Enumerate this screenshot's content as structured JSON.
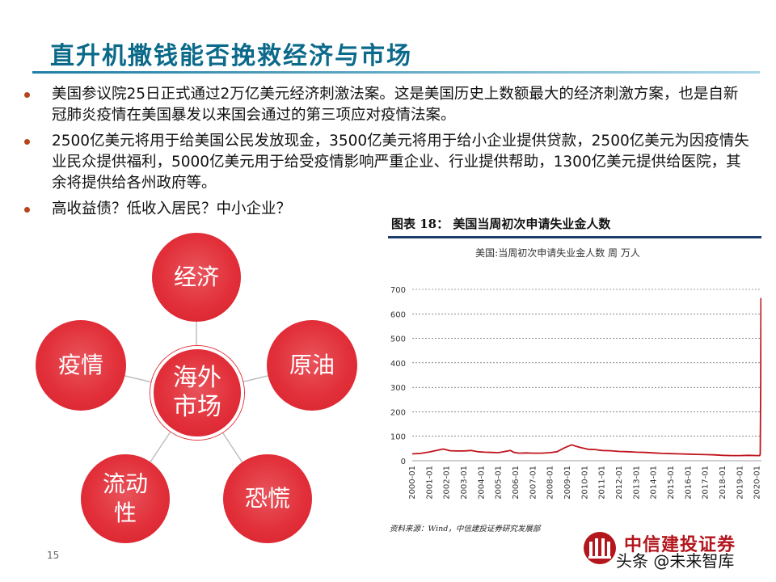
{
  "slide": {
    "title": "直升机撒钱能否挽救经济与市场",
    "page_number": "15"
  },
  "bullets": [
    "美国参议院25日正式通过2万亿美元经济刺激法案。这是美国历史上数额最大的经济刺激方案，也是自新冠肺炎疫情在美国暴发以来国会通过的第三项应对疫情法案。",
    "2500亿美元将用于给美国公民发放现金，3500亿美元将用于给小企业提供贷款，2500亿美元为因疫情失业民众提供福利，5000亿美元用于给受疫情影响严重企业、行业提供帮助，1300亿美元提供给医院，其余将提供给各州政府等。",
    "高收益债？低收入居民？中小企业？"
  ],
  "diagram": {
    "center": "海外\n市场",
    "nodes": [
      "经济",
      "原油",
      "恐慌",
      "流动\n性",
      "疫情"
    ],
    "color": "#e2303a"
  },
  "chart_data": {
    "type": "line",
    "title": "图表 18：  美国当周初次申请失业金人数",
    "subtitle": "美国:当周初次申请失业金人数  周  万人",
    "source": "资料来源：Wind，中信建投证券研究发展部",
    "ylim": [
      0,
      700
    ],
    "yticks": [
      "0",
      "100",
      "200",
      "300",
      "400",
      "500",
      "600",
      "700"
    ],
    "xticks": [
      "2000-01",
      "2001-01",
      "2002-01",
      "2003-01",
      "2004-01",
      "2005-01",
      "2006-01",
      "2007-01",
      "2008-01",
      "2009-01",
      "2010-01",
      "2011-01",
      "2012-01",
      "2013-01",
      "2014-01",
      "2015-01",
      "2016-01",
      "2017-01",
      "2018-01",
      "2019-01",
      "2020-01"
    ],
    "x_range": [
      2000.0,
      2020.25
    ],
    "series": [
      {
        "color": "#c0141c",
        "x": [
          2000.0,
          2000.5,
          2001.0,
          2001.4,
          2001.8,
          2002.2,
          2002.6,
          2003.0,
          2003.4,
          2003.8,
          2004.2,
          2004.6,
          2005.0,
          2005.7,
          2005.9,
          2006.2,
          2006.6,
          2007.0,
          2007.5,
          2008.0,
          2008.4,
          2008.8,
          2009.0,
          2009.25,
          2009.5,
          2009.8,
          2010.2,
          2010.6,
          2011.0,
          2011.5,
          2012.0,
          2012.5,
          2013.0,
          2013.5,
          2014.0,
          2014.5,
          2015.0,
          2015.5,
          2016.0,
          2016.5,
          2017.0,
          2017.5,
          2018.0,
          2018.5,
          2019.0,
          2019.5,
          2020.0,
          2020.15,
          2020.18,
          2020.21
        ],
        "y": [
          28,
          30,
          36,
          42,
          48,
          41,
          40,
          40,
          42,
          37,
          35,
          34,
          33,
          42,
          34,
          31,
          32,
          31,
          31,
          33,
          37,
          52,
          58,
          65,
          59,
          53,
          47,
          46,
          42,
          41,
          38,
          37,
          35,
          34,
          32,
          30,
          29,
          28,
          27,
          26,
          25,
          24,
          22,
          21,
          21,
          22,
          21,
          21,
          28,
          328
        ]
      },
      {
        "color": "#c0141c",
        "x": [
          2020.21,
          2020.22
        ],
        "y": [
          328,
          665
        ]
      }
    ]
  },
  "logo": {
    "company": "中信建投证券",
    "watermark": "头条 @未来智库"
  }
}
